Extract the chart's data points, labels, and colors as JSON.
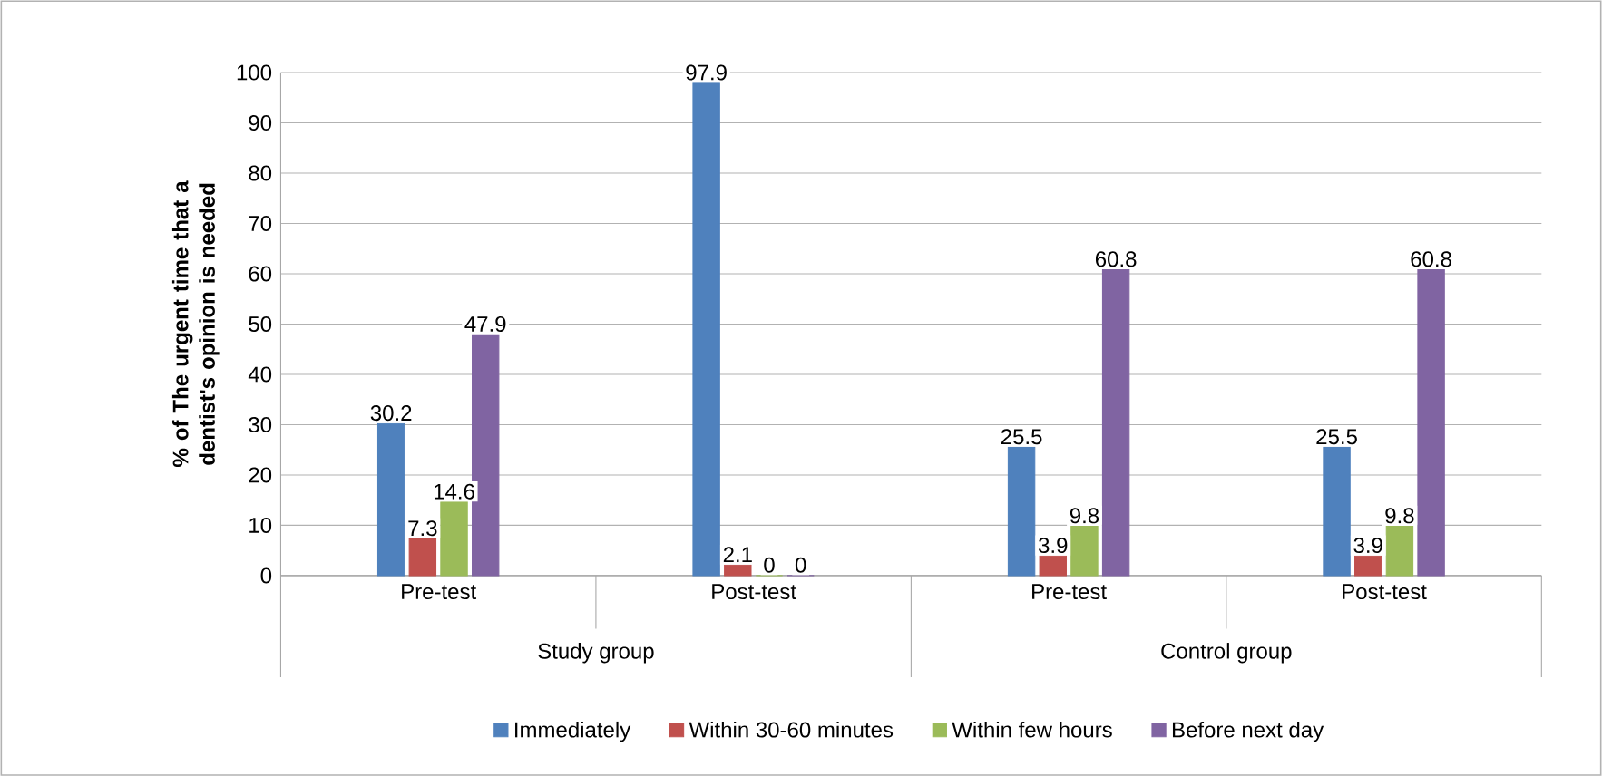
{
  "chart_data": {
    "type": "bar",
    "ylabel": "% of The urgent time that a dentist's opinion is needed",
    "categories": [
      "Pre-test",
      "Post-test",
      "Pre-test",
      "Post-test"
    ],
    "series": [
      {
        "name": "Immediately",
        "color": "#4f81bd",
        "values": [
          30.2,
          97.9,
          25.5,
          25.5
        ]
      },
      {
        "name": "Within 30-60 minutes",
        "color": "#c0504d",
        "values": [
          7.3,
          2.1,
          3.9,
          3.9
        ]
      },
      {
        "name": "Within few hours",
        "color": "#9bbb59",
        "values": [
          14.6,
          0,
          9.8,
          9.8
        ]
      },
      {
        "name": "Before next day",
        "color": "#8064a2",
        "values": [
          47.9,
          0,
          60.8,
          60.8
        ]
      }
    ],
    "annotations": [
      "Study group",
      "Control group"
    ],
    "ylim": [
      0,
      100
    ],
    "yticks": [
      0,
      10,
      20,
      30,
      40,
      50,
      60,
      70,
      80,
      90,
      100
    ],
    "grid": "y",
    "legend": "bottom",
    "data_labels": true
  }
}
